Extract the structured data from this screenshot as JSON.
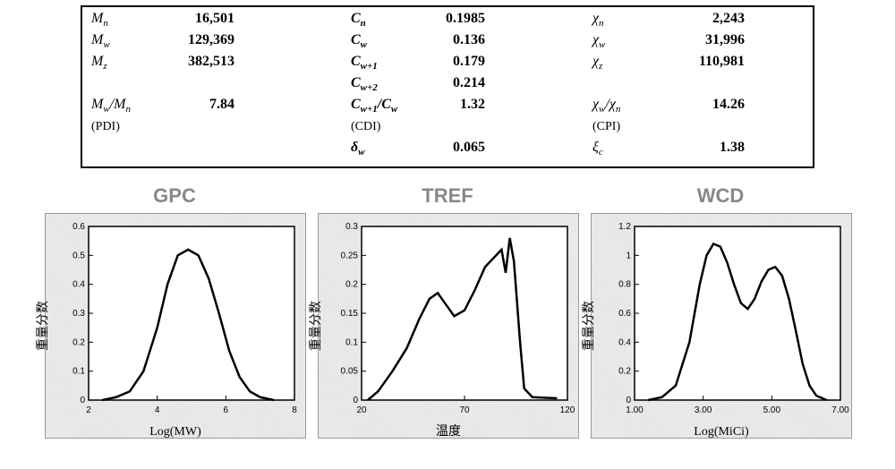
{
  "table": {
    "rows": [
      {
        "l1": "M",
        "s1": "n",
        "v1": "16,501",
        "l2": "C",
        "s2": "n",
        "v2": "0.1985",
        "l3": "χ",
        "s3": "n",
        "v3": "2,243"
      },
      {
        "l1": "M",
        "s1": "w",
        "v1": "129,369",
        "l2": "C",
        "s2": "w",
        "v2": "0.136",
        "l3": "χ",
        "s3": "w",
        "v3": "31,996"
      },
      {
        "l1": "M",
        "s1": "z",
        "v1": "382,513",
        "l2": "C",
        "s2": "w+1",
        "v2": "0.179",
        "l3": "χ",
        "s3": "z",
        "v3": "110,981"
      },
      {
        "l1": "",
        "s1": "",
        "v1": "",
        "l2": "C",
        "s2": "w+2",
        "v2": "0.214",
        "l3": "",
        "s3": "",
        "v3": ""
      },
      {
        "l1": "M",
        "s1": "w",
        "l1b": "/M",
        "s1b": "n",
        "v1": "7.84",
        "l2": "C",
        "s2": "w+1",
        "l2b": "/C",
        "s2b": "w",
        "v2": "1.32",
        "l3": "χ",
        "s3": "w",
        "l3b": "/χ",
        "s3b": "n",
        "v3": "14.26"
      },
      {
        "l1n": "(PDI)",
        "v1": "",
        "l2n": "(CDI)",
        "v2": "",
        "l3n": "(CPI)",
        "v3": ""
      },
      {
        "l1": "",
        "v1": "",
        "l2": "δ",
        "s2": "w",
        "v2": "0.065",
        "l3": "ξ",
        "s3": "c",
        "v3": "1.38"
      }
    ]
  },
  "charts": {
    "titles": [
      "GPC",
      "TREF",
      "WCD"
    ],
    "ylab": "重量分数",
    "gpc": {
      "xlab": "Log(MW)",
      "xlim": [
        2,
        8
      ],
      "xticks": [
        2,
        4,
        6,
        8
      ],
      "ylim": [
        0,
        0.6
      ],
      "yticks": [
        0,
        0.1,
        0.2,
        0.3,
        0.4,
        0.5,
        0.6
      ],
      "pts": [
        [
          2.4,
          0.0
        ],
        [
          2.8,
          0.01
        ],
        [
          3.2,
          0.03
        ],
        [
          3.6,
          0.1
        ],
        [
          4.0,
          0.25
        ],
        [
          4.3,
          0.4
        ],
        [
          4.6,
          0.5
        ],
        [
          4.9,
          0.52
        ],
        [
          5.2,
          0.5
        ],
        [
          5.5,
          0.42
        ],
        [
          5.8,
          0.3
        ],
        [
          6.1,
          0.17
        ],
        [
          6.4,
          0.08
        ],
        [
          6.7,
          0.03
        ],
        [
          7.0,
          0.01
        ],
        [
          7.4,
          0.0
        ]
      ],
      "line_color": "#000",
      "line_w": 2.5,
      "bg": "#fff",
      "tickfont": 10
    },
    "tref": {
      "xlab": "温度",
      "xlim": [
        20,
        120
      ],
      "xticks": [
        20,
        70,
        120
      ],
      "ylim": [
        0,
        0.3
      ],
      "yticks": [
        0,
        0.05,
        0.1,
        0.15,
        0.2,
        0.25,
        0.3
      ],
      "pts": [
        [
          23,
          0.0
        ],
        [
          28,
          0.015
        ],
        [
          35,
          0.05
        ],
        [
          42,
          0.09
        ],
        [
          48,
          0.14
        ],
        [
          53,
          0.175
        ],
        [
          57,
          0.185
        ],
        [
          61,
          0.165
        ],
        [
          65,
          0.145
        ],
        [
          70,
          0.155
        ],
        [
          75,
          0.19
        ],
        [
          80,
          0.23
        ],
        [
          84,
          0.245
        ],
        [
          88,
          0.26
        ],
        [
          90,
          0.22
        ],
        [
          92,
          0.28
        ],
        [
          94,
          0.24
        ],
        [
          97,
          0.1
        ],
        [
          99,
          0.02
        ],
        [
          103,
          0.005
        ],
        [
          115,
          0.003
        ]
      ],
      "line_color": "#000",
      "line_w": 2.5,
      "bg": "#fff",
      "tickfont": 10
    },
    "wcd": {
      "xlab": "Log(MiCi)",
      "xlim": [
        1.0,
        7.0
      ],
      "xticks": [
        1.0,
        3.0,
        5.0,
        7.0
      ],
      "xticklabels": [
        "1.00",
        "3.00",
        "5.00",
        "7.00"
      ],
      "ylim": [
        0,
        1.2
      ],
      "yticks": [
        0,
        0.2,
        0.4,
        0.6,
        0.8,
        1,
        1.2
      ],
      "pts": [
        [
          1.4,
          0.0
        ],
        [
          1.8,
          0.02
        ],
        [
          2.2,
          0.1
        ],
        [
          2.6,
          0.4
        ],
        [
          2.9,
          0.8
        ],
        [
          3.1,
          1.0
        ],
        [
          3.3,
          1.08
        ],
        [
          3.5,
          1.06
        ],
        [
          3.7,
          0.95
        ],
        [
          3.9,
          0.8
        ],
        [
          4.1,
          0.67
        ],
        [
          4.3,
          0.63
        ],
        [
          4.5,
          0.7
        ],
        [
          4.7,
          0.82
        ],
        [
          4.9,
          0.9
        ],
        [
          5.1,
          0.92
        ],
        [
          5.3,
          0.86
        ],
        [
          5.5,
          0.7
        ],
        [
          5.7,
          0.48
        ],
        [
          5.9,
          0.25
        ],
        [
          6.1,
          0.1
        ],
        [
          6.3,
          0.03
        ],
        [
          6.6,
          0.0
        ]
      ],
      "line_color": "#000",
      "line_w": 2.5,
      "bg": "#fff",
      "tickfont": 10
    }
  }
}
